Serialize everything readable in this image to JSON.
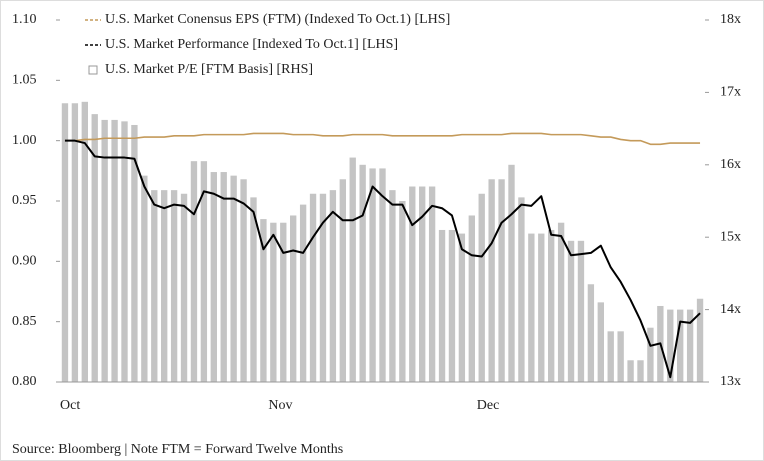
{
  "chart_data": {
    "type": "bar_line",
    "note": "Source: Bloomberg | Note FTM = Forward Twelve Months",
    "categories": [
      "Oct",
      null,
      null,
      null,
      null,
      null,
      null,
      null,
      null,
      null,
      null,
      null,
      null,
      null,
      null,
      null,
      null,
      null,
      null,
      null,
      null,
      "Nov",
      null,
      null,
      null,
      null,
      null,
      null,
      null,
      null,
      null,
      null,
      null,
      null,
      null,
      null,
      null,
      null,
      null,
      null,
      null,
      null,
      "Dec",
      null,
      null,
      null,
      null,
      null,
      null,
      null,
      null,
      null,
      null,
      null,
      null,
      null,
      null,
      null,
      null,
      null,
      null,
      null,
      null,
      null,
      null
    ],
    "ylim": [
      0.8,
      1.1
    ],
    "yticks": [
      {
        "value": 0.8,
        "label": "0.80"
      },
      {
        "value": 0.85,
        "label": "0.85"
      },
      {
        "value": 0.9,
        "label": "0.90"
      },
      {
        "value": 0.95,
        "label": "0.95"
      },
      {
        "value": 1.0,
        "label": "1.00"
      },
      {
        "value": 1.05,
        "label": "1.05"
      },
      {
        "value": 1.1,
        "label": "1.10"
      }
    ],
    "y2lim": [
      13,
      18
    ],
    "y2ticks": [
      {
        "value": 13,
        "label": "13x"
      },
      {
        "value": 14,
        "label": "14x"
      },
      {
        "value": 15,
        "label": "15x"
      },
      {
        "value": 16,
        "label": "16x"
      },
      {
        "value": 17,
        "label": "17x"
      },
      {
        "value": 18,
        "label": "18x"
      }
    ],
    "series": [
      {
        "name": "U.S. Market Conensus EPS (FTM) (Indexed To Oct.1) [LHS]",
        "type": "line",
        "dash": true,
        "color": "#c49a5a",
        "values": [
          1.0,
          1.0,
          1.001,
          1.001,
          1.002,
          1.002,
          1.002,
          1.002,
          1.003,
          1.003,
          1.003,
          1.004,
          1.004,
          1.004,
          1.005,
          1.005,
          1.005,
          1.005,
          1.005,
          1.006,
          1.006,
          1.006,
          1.006,
          1.005,
          1.005,
          1.005,
          1.004,
          1.004,
          1.004,
          1.005,
          1.005,
          1.005,
          1.005,
          1.004,
          1.004,
          1.004,
          1.004,
          1.004,
          1.004,
          1.004,
          1.005,
          1.005,
          1.005,
          1.005,
          1.005,
          1.006,
          1.006,
          1.006,
          1.006,
          1.005,
          1.005,
          1.005,
          1.005,
          1.004,
          1.003,
          1.003,
          1.001,
          1.0,
          1.0,
          0.997,
          0.997,
          0.998,
          0.998,
          0.998,
          0.998
        ]
      },
      {
        "name": "U.S. Market Performance [Indexed To Oct.1] [LHS]",
        "type": "line",
        "dash": true,
        "color": "#000000",
        "values": [
          1.0,
          1.0,
          0.998,
          0.987,
          0.986,
          0.986,
          0.986,
          0.985,
          0.962,
          0.947,
          0.944,
          0.947,
          0.946,
          0.939,
          0.958,
          0.956,
          0.952,
          0.952,
          0.948,
          0.941,
          0.91,
          0.922,
          0.907,
          0.909,
          0.907,
          0.92,
          0.932,
          0.941,
          0.934,
          0.934,
          0.938,
          0.962,
          0.954,
          0.947,
          0.947,
          0.93,
          0.937,
          0.946,
          0.944,
          0.938,
          0.91,
          0.905,
          0.904,
          0.915,
          0.932,
          0.939,
          0.947,
          0.946,
          0.954,
          0.922,
          0.921,
          0.905,
          0.906,
          0.907,
          0.913,
          0.895,
          0.883,
          0.868,
          0.851,
          0.83,
          0.832,
          0.804,
          0.85,
          0.849,
          0.857
        ]
      },
      {
        "name": "U.S. Market P/E [FTM Basis] [RHS]",
        "type": "bar",
        "axis": "y2",
        "color": "#c4c4c4",
        "values": [
          16.85,
          16.85,
          16.87,
          16.7,
          16.62,
          16.62,
          16.6,
          16.55,
          15.85,
          15.65,
          15.65,
          15.65,
          15.6,
          16.05,
          16.05,
          15.9,
          15.9,
          15.85,
          15.8,
          15.55,
          15.25,
          15.2,
          15.2,
          15.3,
          15.45,
          15.6,
          15.6,
          15.65,
          15.8,
          16.1,
          16.0,
          15.95,
          15.95,
          15.65,
          15.5,
          15.7,
          15.7,
          15.7,
          15.1,
          15.1,
          15.05,
          15.3,
          15.6,
          15.8,
          15.8,
          16.0,
          15.55,
          15.05,
          15.05,
          15.1,
          15.2,
          14.95,
          14.95,
          14.35,
          14.1,
          13.7,
          13.7,
          13.3,
          13.3,
          13.75,
          14.05,
          14.0,
          14.0,
          14.0,
          14.15
        ]
      }
    ]
  }
}
